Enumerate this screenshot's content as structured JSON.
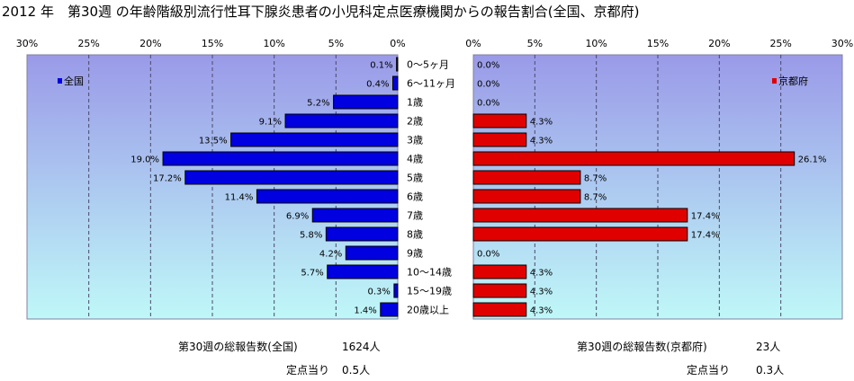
{
  "title": "2012 年　第30週 の年齢階級別流行性耳下腺炎患者の小児科定点医療機関からの報告割合(全国、京都府)",
  "chart_data": [
    {
      "type": "bar",
      "orientation": "horizontal",
      "direction": "right-to-left",
      "series": [
        {
          "name": "全国",
          "values": [
            0.1,
            0.4,
            5.2,
            9.1,
            13.5,
            19.0,
            17.2,
            11.4,
            6.9,
            5.8,
            4.2,
            5.7,
            0.3,
            1.4
          ]
        }
      ],
      "data_labels": [
        "0.1%",
        "0.4%",
        "5.2%",
        "9.1%",
        "13.5%",
        "19.0%",
        "17.2%",
        "11.4%",
        "6.9%",
        "5.8%",
        "4.2%",
        "5.7%",
        "0.3%",
        "1.4%"
      ],
      "xlim": [
        0,
        30
      ],
      "xticks": [
        "30%",
        "25%",
        "20%",
        "15%",
        "10%",
        "5%",
        "0%"
      ],
      "legend_position": "top-left",
      "grid": true,
      "bar_color": "#0000e0"
    },
    {
      "type": "bar",
      "orientation": "horizontal",
      "direction": "left-to-right",
      "series": [
        {
          "name": "京都府",
          "values": [
            0.0,
            0.0,
            0.0,
            4.3,
            4.3,
            26.1,
            8.7,
            8.7,
            17.4,
            17.4,
            0.0,
            4.3,
            4.3,
            4.3
          ]
        }
      ],
      "data_labels": [
        "0.0%",
        "0.0%",
        "0.0%",
        "4.3%",
        "4.3%",
        "26.1%",
        "8.7%",
        "8.7%",
        "17.4%",
        "17.4%",
        "0.0%",
        "4.3%",
        "4.3%",
        "4.3%"
      ],
      "xlim": [
        0,
        30
      ],
      "xticks": [
        "0%",
        "5%",
        "10%",
        "15%",
        "20%",
        "25%",
        "30%"
      ],
      "legend_position": "top-right",
      "grid": true,
      "bar_color": "#e00000"
    }
  ],
  "categories": [
    "0～5ヶ月",
    "6～11ヶ月",
    "1歳",
    "2歳",
    "3歳",
    "4歳",
    "5歳",
    "6歳",
    "7歳",
    "8歳",
    "9歳",
    "10～14歳",
    "15～19歳",
    "20歳以上"
  ],
  "footer": {
    "national_total_label": "第30週の総報告数(全国)",
    "national_total_value": "1624人",
    "national_per_label": "定点当り",
    "national_per_value": "0.5人",
    "kyoto_total_label": "第30週の総報告数(京都府)",
    "kyoto_total_value": "23人",
    "kyoto_per_label": "定点当り",
    "kyoto_per_value": "0.3人"
  },
  "colors": {
    "plot_top": "#9a9ae8",
    "plot_bottom": "#bff8f8",
    "national_bar": "#0000e0",
    "kyoto_bar": "#e00000",
    "grid": "#4a4a6a"
  }
}
